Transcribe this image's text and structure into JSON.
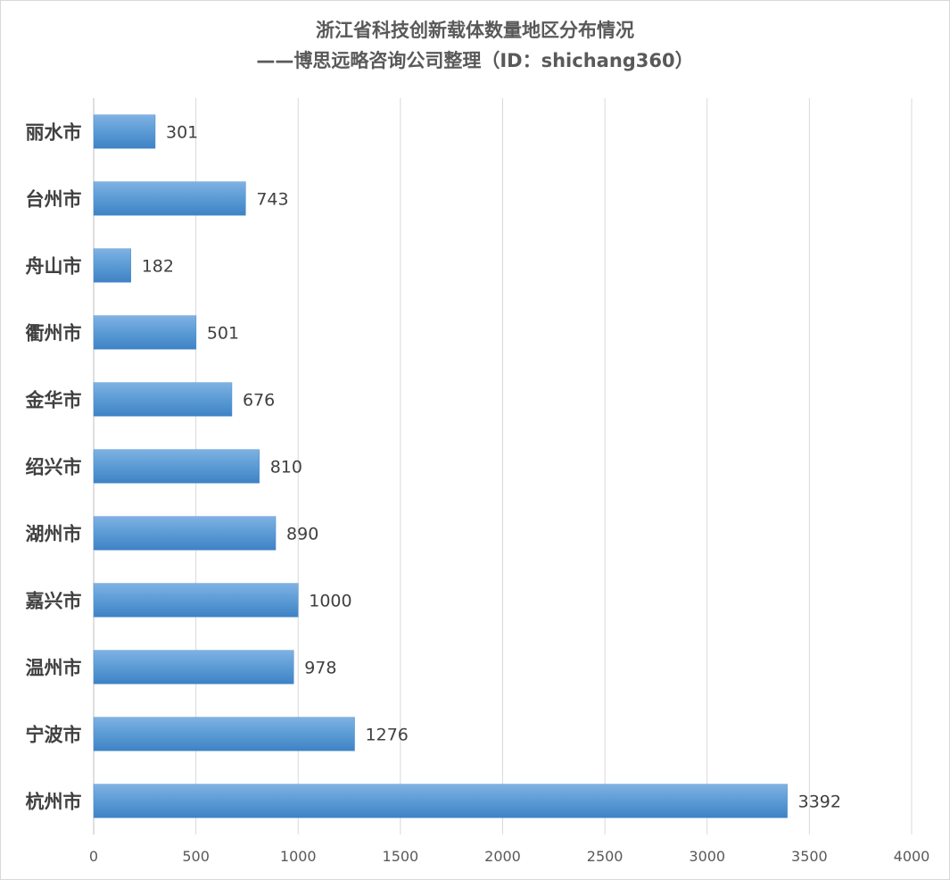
{
  "title": {
    "line1": "浙江省科技创新载体数量地区分布情况",
    "line2": "——博思远略咨询公司整理（ID：shichang360）"
  },
  "chart_data": {
    "type": "bar",
    "orientation": "horizontal",
    "title": "浙江省科技创新载体数量地区分布情况 ——博思远略咨询公司整理（ID：shichang360）",
    "categories": [
      "丽水市",
      "台州市",
      "舟山市",
      "衢州市",
      "金华市",
      "绍兴市",
      "湖州市",
      "嘉兴市",
      "温州市",
      "宁波市",
      "杭州市"
    ],
    "values": [
      301,
      743,
      182,
      501,
      676,
      810,
      890,
      1000,
      978,
      1276,
      3392
    ],
    "xlim": [
      0,
      4000
    ],
    "xticks": [
      0,
      500,
      1000,
      1500,
      2000,
      2500,
      3000,
      3500,
      4000
    ],
    "xlabel": "",
    "ylabel": "",
    "grid": true,
    "legend": "none",
    "data_labels": true,
    "bar_color": "#5b9bd5"
  }
}
